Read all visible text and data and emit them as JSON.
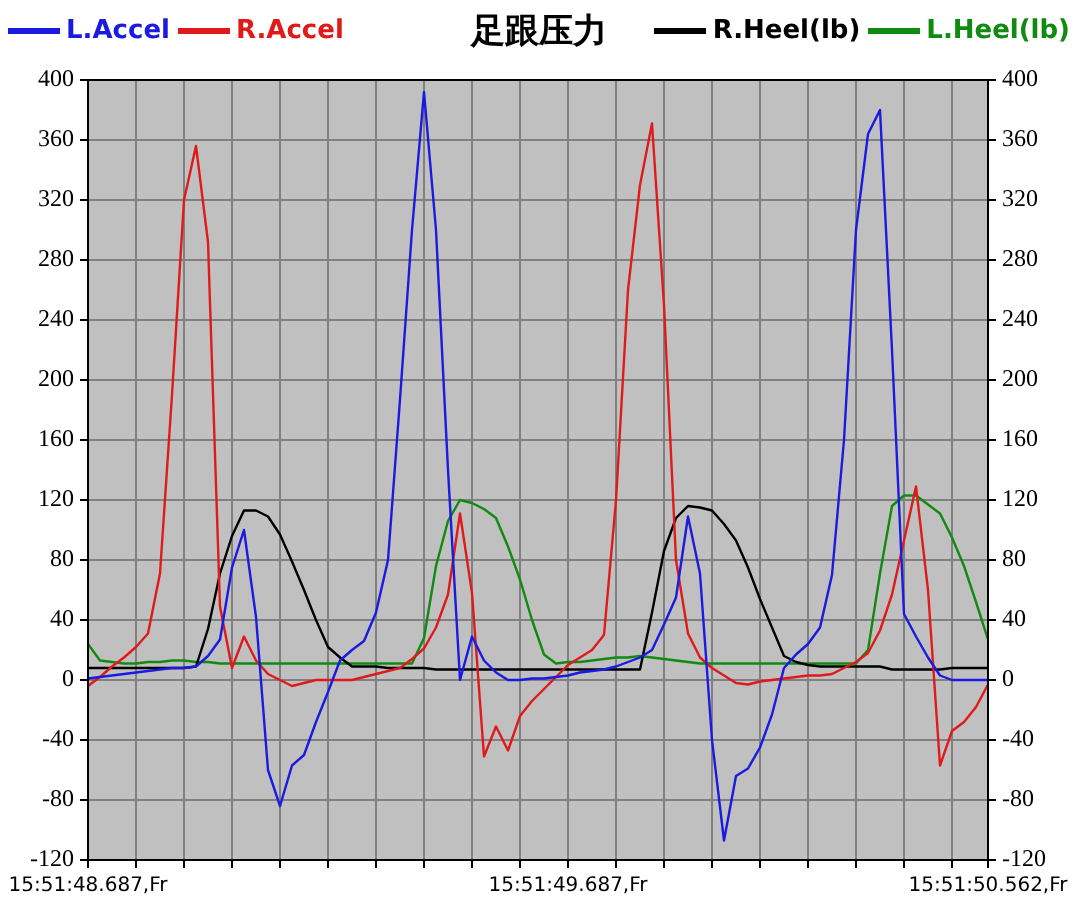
{
  "chart_data": {
    "type": "line",
    "title": "足跟压力",
    "legend": "top",
    "grid": true,
    "marker": "none",
    "line_style": "solid",
    "categories": [
      "15:51:48.687,Fr",
      null,
      null,
      null,
      null,
      null,
      null,
      null,
      null,
      null,
      null,
      null,
      null,
      null,
      null,
      null,
      null,
      null,
      null,
      null,
      null,
      null,
      null,
      null,
      null,
      null,
      null,
      null,
      null,
      null,
      null,
      null,
      null,
      null,
      null,
      null,
      null,
      null,
      null,
      null,
      "15:51:49.687,Fr",
      null,
      null,
      null,
      null,
      null,
      null,
      null,
      null,
      null,
      null,
      null,
      null,
      null,
      null,
      null,
      null,
      null,
      null,
      null,
      null,
      null,
      null,
      null,
      null,
      null,
      null,
      null,
      null,
      null,
      null,
      null,
      null,
      null,
      null,
      "15:51:50.562,Fr"
    ],
    "ylim": [
      -120,
      400
    ],
    "yticks": [
      -120,
      -80,
      -40,
      0,
      40,
      80,
      120,
      160,
      200,
      240,
      280,
      320,
      360,
      400
    ],
    "y2lim": [
      -120,
      400
    ],
    "y2ticks": [
      -120,
      -80,
      -40,
      0,
      40,
      80,
      120,
      160,
      200,
      240,
      280,
      320,
      360,
      400
    ],
    "series": [
      {
        "name": "L.Accel",
        "color": "#1a1ae0",
        "values": [
          1,
          2,
          3,
          4,
          5,
          6,
          7,
          8,
          8,
          9,
          16,
          27,
          75,
          100,
          42,
          -60,
          -84,
          -57,
          -50,
          -28,
          -8,
          13,
          20,
          26,
          45,
          80,
          187,
          300,
          392,
          300,
          140,
          0,
          29,
          13,
          5,
          0,
          0,
          1,
          1,
          2,
          3,
          5,
          6,
          7,
          9,
          12,
          15,
          20,
          37,
          55,
          109,
          71,
          -40,
          -107,
          -64,
          -59,
          -45,
          -23,
          8,
          17,
          24,
          35,
          70,
          160,
          300,
          364,
          380,
          220,
          44,
          29,
          15,
          3,
          0,
          0,
          0,
          0
        ]
      },
      {
        "name": "R.Accel",
        "color": "#e01a1a",
        "values": [
          -4,
          2,
          9,
          15,
          22,
          31,
          71,
          190,
          320,
          356,
          292,
          49,
          8,
          29,
          13,
          4,
          0,
          -4,
          -2,
          0,
          0,
          0,
          0,
          2,
          4,
          6,
          8,
          14,
          21,
          35,
          57,
          111,
          58,
          -51,
          -31,
          -47,
          -24,
          -14,
          -6,
          2,
          10,
          15,
          20,
          30,
          120,
          260,
          330,
          371,
          250,
          80,
          31,
          15,
          8,
          3,
          -2,
          -3,
          -1,
          0,
          1,
          2,
          3,
          3,
          4,
          8,
          12,
          18,
          33,
          57,
          93,
          129,
          60,
          -57,
          -34,
          -28,
          -18,
          -3
        ]
      },
      {
        "name": "R.Heel(lb)",
        "color": "#000000",
        "values": [
          8,
          8,
          8,
          8,
          8,
          8,
          8,
          8,
          8,
          9,
          34,
          71,
          96,
          113,
          113,
          109,
          97,
          79,
          60,
          40,
          22,
          15,
          9,
          9,
          9,
          8,
          8,
          8,
          8,
          7,
          7,
          7,
          7,
          7,
          7,
          7,
          7,
          7,
          7,
          7,
          7,
          7,
          7,
          7,
          7,
          7,
          7,
          45,
          86,
          108,
          116,
          115,
          113,
          104,
          93,
          75,
          54,
          35,
          16,
          12,
          10,
          9,
          9,
          9,
          9,
          9,
          9,
          7,
          7,
          7,
          7,
          7,
          8,
          8,
          8,
          8
        ]
      },
      {
        "name": "L.Heel(lb)",
        "color": "#108a10",
        "values": [
          24,
          13,
          12,
          11,
          11,
          12,
          12,
          13,
          13,
          12,
          12,
          11,
          11,
          11,
          11,
          11,
          11,
          11,
          11,
          11,
          11,
          11,
          11,
          11,
          11,
          11,
          11,
          11,
          28,
          76,
          106,
          120,
          118,
          114,
          108,
          89,
          67,
          40,
          17,
          11,
          12,
          12,
          13,
          14,
          15,
          15,
          16,
          15,
          14,
          13,
          12,
          11,
          11,
          11,
          11,
          11,
          11,
          11,
          11,
          11,
          11,
          11,
          11,
          11,
          11,
          20,
          71,
          116,
          123,
          123,
          117,
          111,
          95,
          76,
          52,
          27
        ]
      }
    ]
  }
}
